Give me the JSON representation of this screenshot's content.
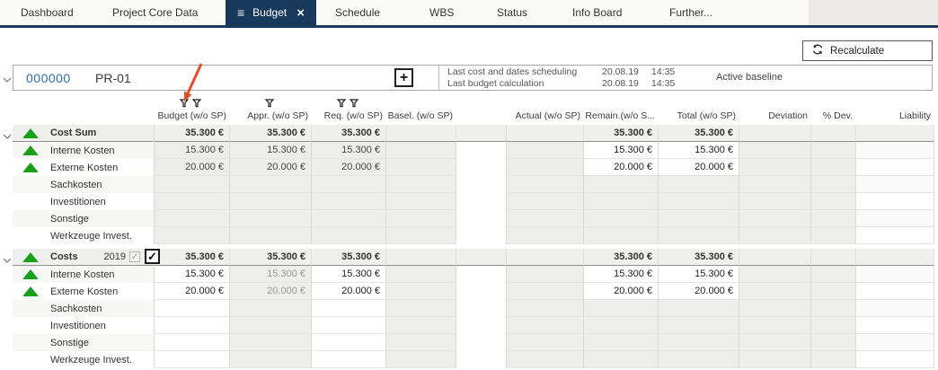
{
  "colors": {
    "navy": "#16395c",
    "blue": "#2e6ea6",
    "green": "#18a118",
    "orange": "#e0512a"
  },
  "tabs": {
    "items": [
      {
        "label": "Dashboard",
        "active": false
      },
      {
        "label": "Project Core Data",
        "active": false
      },
      {
        "label": "Budget",
        "active": true
      },
      {
        "label": "Schedule",
        "active": false
      },
      {
        "label": "WBS",
        "active": false
      },
      {
        "label": "Status",
        "active": false
      },
      {
        "label": "Info Board",
        "active": false
      },
      {
        "label": "Further...",
        "active": false
      }
    ]
  },
  "toolbar": {
    "recalculate_label": "Recalculate"
  },
  "project_header": {
    "id": "000000",
    "code": "PR-01",
    "plus_label": "+",
    "info": [
      {
        "label": "Last cost and dates scheduling",
        "date": "20.08.19",
        "time": "14:35"
      },
      {
        "label": "Last budget calculation",
        "date": "20.08.19",
        "time": "14:35"
      }
    ],
    "baseline_label": "Active baseline"
  },
  "table": {
    "columns_left": [
      {
        "key": "budget",
        "label": "Budget (w/o SP)",
        "filters": 2
      },
      {
        "key": "appr",
        "label": "Appr. (w/o SP)",
        "filters": 1
      },
      {
        "key": "req",
        "label": "Req. (w/o SP)",
        "filters": 2
      },
      {
        "key": "basel",
        "label": "Basel. (w/o SP)",
        "filters": 0
      }
    ],
    "columns_right": [
      {
        "key": "actual",
        "label": "Actual (w/o SP)"
      },
      {
        "key": "remain",
        "label": "Remain.(w/o S..."
      },
      {
        "key": "total",
        "label": "Total (w/o SP)"
      },
      {
        "key": "deviation",
        "label": "Deviation"
      },
      {
        "key": "pdev",
        "label": "% Dev."
      },
      {
        "key": "liability",
        "label": "Liability"
      }
    ],
    "groups": [
      {
        "name": "Cost Sum",
        "year": null,
        "editable_cols": [],
        "grayed_cols": [],
        "header_values": {
          "budget": "35.300 €",
          "appr": "35.300 €",
          "req": "35.300 €",
          "remain": "35.300 €",
          "total": "35.300 €"
        },
        "rows": [
          {
            "label": "Interne Kosten",
            "indicator": true,
            "values": {
              "budget": "15.300 €",
              "appr": "15.300 €",
              "req": "15.300 €",
              "remain": "15.300 €",
              "total": "15.300 €"
            }
          },
          {
            "label": "Externe Kosten",
            "indicator": true,
            "values": {
              "budget": "20.000 €",
              "appr": "20.000 €",
              "req": "20.000 €",
              "remain": "20.000 €",
              "total": "20.000 €"
            }
          },
          {
            "label": "Sachkosten",
            "indicator": false,
            "values": {}
          },
          {
            "label": "Investitionen",
            "indicator": false,
            "values": {}
          },
          {
            "label": "Sonstige",
            "indicator": false,
            "values": {}
          },
          {
            "label": "Werkzeuge Invest.",
            "indicator": false,
            "values": {}
          }
        ]
      },
      {
        "name": "Costs",
        "year": "2019",
        "checkbox_small_checked": true,
        "checkbox_big_checked": true,
        "editable_cols": [
          "budget",
          "req"
        ],
        "grayed_cols": [
          "appr",
          "basel"
        ],
        "header_values": {
          "budget": "35.300 €",
          "appr": "35.300 €",
          "req": "35.300 €",
          "remain": "35.300 €",
          "total": "35.300 €"
        },
        "rows": [
          {
            "label": "Interne Kosten",
            "indicator": true,
            "values": {
              "budget": "15.300 €",
              "appr": "15.300 €",
              "req": "15.300 €",
              "remain": "15.300 €",
              "total": "15.300 €"
            }
          },
          {
            "label": "Externe Kosten",
            "indicator": true,
            "values": {
              "budget": "20.000 €",
              "appr": "20.000 €",
              "req": "20.000 €",
              "remain": "20.000 €",
              "total": "20.000 €"
            }
          },
          {
            "label": "Sachkosten",
            "indicator": false,
            "values": {}
          },
          {
            "label": "Investitionen",
            "indicator": false,
            "values": {}
          },
          {
            "label": "Sonstige",
            "indicator": false,
            "values": {}
          },
          {
            "label": "Werkzeuge Invest.",
            "indicator": false,
            "values": {}
          }
        ]
      }
    ]
  }
}
